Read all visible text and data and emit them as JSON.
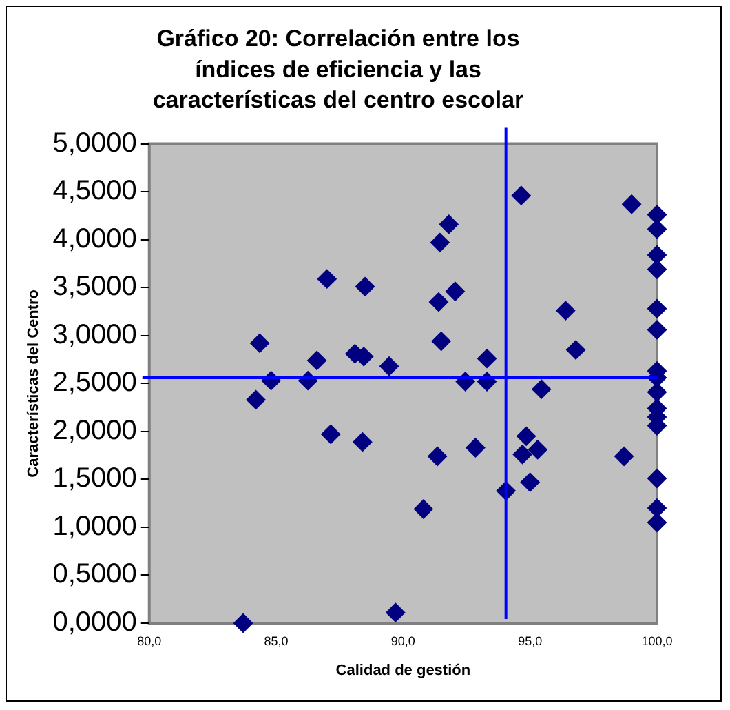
{
  "chart_data": {
    "type": "scatter",
    "title": [
      "Gráfico 20: Correlación entre los",
      "índices de eficiencia y las",
      "características del centro escolar"
    ],
    "xlabel": "Calidad de gestión",
    "ylabel": "Características del Centro",
    "xlim": [
      80,
      100
    ],
    "xticks": [
      {
        "value": 80,
        "label": "80,0"
      },
      {
        "value": 85,
        "label": "85,0"
      },
      {
        "value": 90,
        "label": "90,0"
      },
      {
        "value": 95,
        "label": "95,0"
      },
      {
        "value": 100,
        "label": "100,0"
      }
    ],
    "ylim": [
      0,
      5
    ],
    "yticks": [
      {
        "value": 0,
        "label": "0,0000"
      },
      {
        "value": 0.5,
        "label": "0,5000"
      },
      {
        "value": 1,
        "label": "1,0000"
      },
      {
        "value": 1.5,
        "label": "1,5000"
      },
      {
        "value": 2,
        "label": "2,0000"
      },
      {
        "value": 2.5,
        "label": "2,5000"
      },
      {
        "value": 3,
        "label": "3,0000"
      },
      {
        "value": 3.5,
        "label": "3,5000"
      },
      {
        "value": 4,
        "label": "4,0000"
      },
      {
        "value": 4.5,
        "label": "4,5000"
      },
      {
        "value": 5,
        "label": "5,0000"
      }
    ],
    "grid": false,
    "legend": false,
    "marker": "diamond",
    "series": [
      {
        "color": "#000080",
        "x": [
          83.7,
          89.7,
          84.35,
          84.8,
          84.2,
          86.25,
          86.6,
          87.0,
          87.15,
          88.1,
          88.45,
          88.5,
          88.4,
          89.45,
          90.8,
          91.35,
          91.45,
          91.8,
          91.4,
          92.05,
          91.5,
          92.45,
          93.3,
          93.3,
          92.85,
          94.05,
          94.65,
          94.85,
          94.7,
          95.3,
          95.0,
          95.45,
          96.4,
          96.8,
          99.0,
          98.7,
          100,
          100,
          100,
          100,
          100,
          100,
          100,
          100,
          100,
          100,
          100,
          100,
          100,
          100,
          100
        ],
        "values": [
          0.0,
          0.11,
          2.92,
          2.53,
          2.33,
          2.53,
          2.74,
          3.59,
          1.97,
          2.81,
          2.78,
          3.51,
          1.89,
          2.68,
          1.19,
          1.74,
          3.97,
          4.16,
          3.35,
          3.46,
          2.94,
          2.52,
          2.76,
          2.52,
          1.83,
          1.38,
          4.46,
          1.95,
          1.76,
          1.81,
          1.47,
          2.44,
          3.26,
          2.85,
          4.37,
          1.74,
          4.26,
          4.11,
          3.84,
          3.69,
          3.28,
          3.06,
          2.63,
          2.56,
          2.41,
          2.24,
          2.15,
          2.06,
          1.51,
          1.2,
          1.05
        ]
      }
    ],
    "ref_lines": [
      {
        "axis": "x",
        "value": 94.05,
        "color": "#0000ff"
      },
      {
        "axis": "y",
        "value": 2.56,
        "color": "#0000ff"
      }
    ]
  }
}
